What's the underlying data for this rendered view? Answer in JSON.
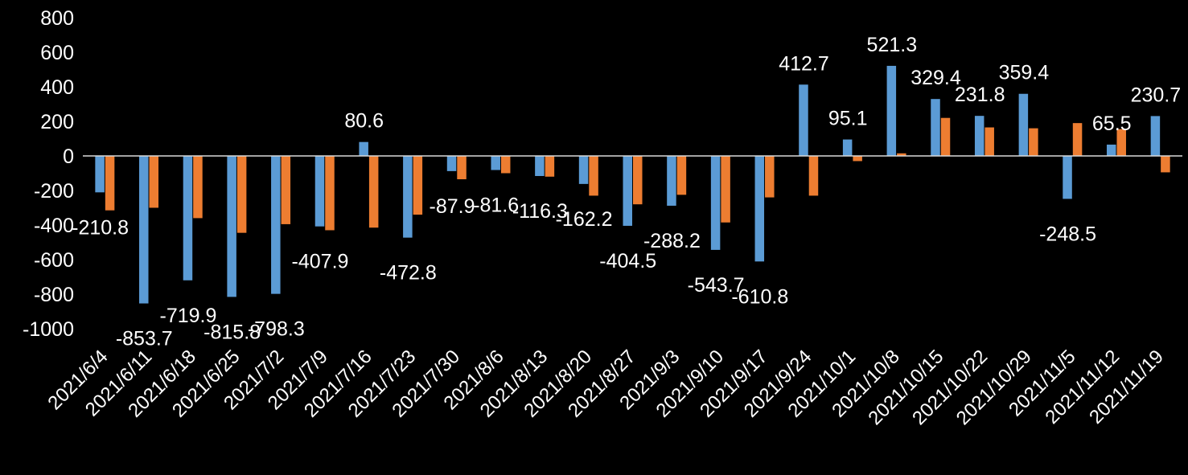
{
  "chart_data": {
    "type": "bar",
    "title": "",
    "xlabel": "",
    "ylabel": "",
    "ylim": [
      -1000,
      800
    ],
    "yticks": [
      800,
      600,
      400,
      200,
      0,
      -200,
      -400,
      -600,
      -800,
      -1000
    ],
    "grid": false,
    "legend": "none",
    "colors": {
      "background": "#000000",
      "axis": "#d9d9d9",
      "text": "#ffffff"
    },
    "categories": [
      "2021/6/4",
      "2021/6/11",
      "2021/6/18",
      "2021/6/25",
      "2021/7/2",
      "2021/7/9",
      "2021/7/16",
      "2021/7/23",
      "2021/7/30",
      "2021/8/6",
      "2021/8/13",
      "2021/8/20",
      "2021/8/27",
      "2021/9/3",
      "2021/9/10",
      "2021/9/17",
      "2021/9/24",
      "2021/10/1",
      "2021/10/8",
      "2021/10/15",
      "2021/10/22",
      "2021/10/29",
      "2021/11/5",
      "2021/11/12",
      "2021/11/19"
    ],
    "series": [
      {
        "color": "#5b9bd5",
        "values": [
          -210.8,
          -853.7,
          -719.9,
          -815.8,
          -798.3,
          -407.9,
          80.6,
          -472.8,
          -87.9,
          -81.6,
          -116.3,
          -162.2,
          -404.5,
          -288.2,
          -543.7,
          -610.8,
          412.7,
          95.1,
          521.3,
          329.4,
          231.8,
          359.4,
          -248.5,
          65.5,
          230.7
        ],
        "labels": [
          "-210.8",
          "-853.7",
          "-719.9",
          "-815.8",
          "-798.3",
          "-407.9",
          "80.6",
          "-472.8",
          "-87.9",
          "-81.6",
          "-116.3",
          "-162.2",
          "-404.5",
          "-288.2",
          "-543.7",
          "-610.8",
          "412.7",
          "95.1",
          "521.3",
          "329.4",
          "231.8",
          "359.4",
          "-248.5",
          "65.5",
          "230.7"
        ]
      },
      {
        "color": "#ed7d31",
        "values": [
          -315,
          -300,
          -360,
          -445,
          -395,
          -430,
          -415,
          -340,
          -135,
          -100,
          -120,
          -230,
          -280,
          -225,
          -385,
          -240,
          -230,
          -30,
          15,
          220,
          165,
          160,
          190,
          155,
          -95
        ]
      }
    ]
  }
}
